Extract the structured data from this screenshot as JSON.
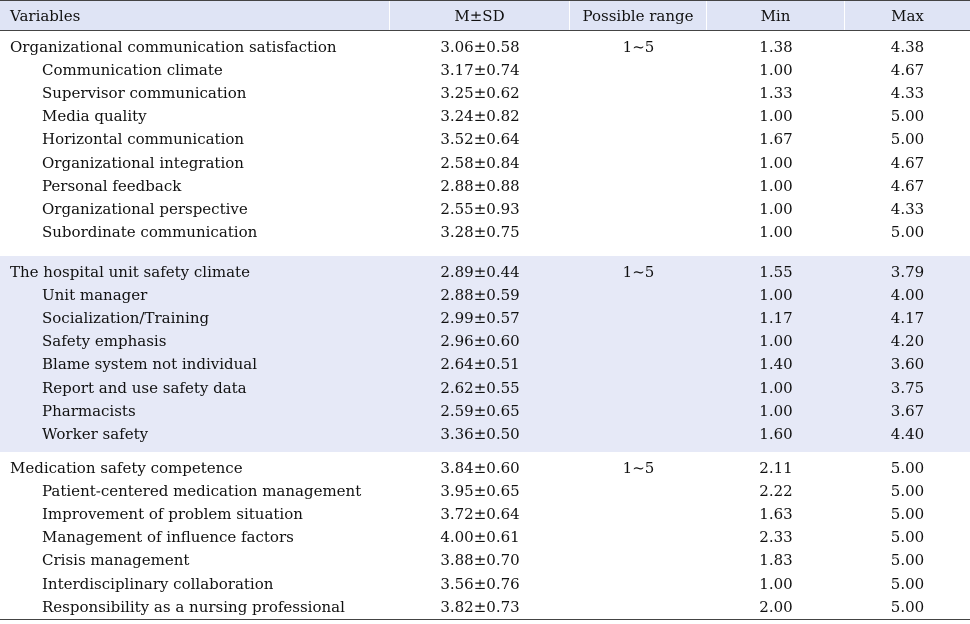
{
  "header": {
    "variables": "Variables",
    "msd": "M±SD",
    "range": "Possible range",
    "min": "Min",
    "max": "Max"
  },
  "groups": [
    {
      "shaded": false,
      "rows": [
        {
          "label": "Organizational communication satisfaction",
          "msd": "3.06±0.58",
          "range": "1~5",
          "min": "1.38",
          "max": "4.38",
          "sub": false
        },
        {
          "label": "Communication climate",
          "msd": "3.17±0.74",
          "range": "",
          "min": "1.00",
          "max": "4.67",
          "sub": true
        },
        {
          "label": "Supervisor communication",
          "msd": "3.25±0.62",
          "range": "",
          "min": "1.33",
          "max": "4.33",
          "sub": true
        },
        {
          "label": "Media quality",
          "msd": "3.24±0.82",
          "range": "",
          "min": "1.00",
          "max": "5.00",
          "sub": true
        },
        {
          "label": "Horizontal communication",
          "msd": "3.52±0.64",
          "range": "",
          "min": "1.67",
          "max": "5.00",
          "sub": true
        },
        {
          "label": "Organizational integration",
          "msd": "2.58±0.84",
          "range": "",
          "min": "1.00",
          "max": "4.67",
          "sub": true
        },
        {
          "label": "Personal feedback",
          "msd": "2.88±0.88",
          "range": "",
          "min": "1.00",
          "max": "4.67",
          "sub": true
        },
        {
          "label": "Organizational perspective",
          "msd": "2.55±0.93",
          "range": "",
          "min": "1.00",
          "max": "4.33",
          "sub": true
        },
        {
          "label": "Subordinate communication",
          "msd": "3.28±0.75",
          "range": "",
          "min": "1.00",
          "max": "5.00",
          "sub": true
        }
      ]
    },
    {
      "shaded": true,
      "rows": [
        {
          "label": "The hospital unit safety climate",
          "msd": "2.89±0.44",
          "range": "1~5",
          "min": "1.55",
          "max": "3.79",
          "sub": false
        },
        {
          "label": "Unit manager",
          "msd": "2.88±0.59",
          "range": "",
          "min": "1.00",
          "max": "4.00",
          "sub": true
        },
        {
          "label": "Socialization/Training",
          "msd": "2.99±0.57",
          "range": "",
          "min": "1.17",
          "max": "4.17",
          "sub": true
        },
        {
          "label": "Safety emphasis",
          "msd": "2.96±0.60",
          "range": "",
          "min": "1.00",
          "max": "4.20",
          "sub": true
        },
        {
          "label": "Blame system not individual",
          "msd": "2.64±0.51",
          "range": "",
          "min": "1.40",
          "max": "3.60",
          "sub": true
        },
        {
          "label": "Report and use safety data",
          "msd": "2.62±0.55",
          "range": "",
          "min": "1.00",
          "max": "3.75",
          "sub": true
        },
        {
          "label": "Pharmacists",
          "msd": "2.59±0.65",
          "range": "",
          "min": "1.00",
          "max": "3.67",
          "sub": true
        },
        {
          "label": "Worker safety",
          "msd": "3.36±0.50",
          "range": "",
          "min": "1.60",
          "max": "4.40",
          "sub": true
        }
      ]
    },
    {
      "shaded": false,
      "rows": [
        {
          "label": "Medication safety competence",
          "msd": "3.84±0.60",
          "range": "1~5",
          "min": "2.11",
          "max": "5.00",
          "sub": false
        },
        {
          "label": "Patient-centered medication management",
          "msd": "3.95±0.65",
          "range": "",
          "min": "2.22",
          "max": "5.00",
          "sub": true
        },
        {
          "label": "Improvement of problem situation",
          "msd": "3.72±0.64",
          "range": "",
          "min": "1.63",
          "max": "5.00",
          "sub": true
        },
        {
          "label": "Management of influence factors",
          "msd": "4.00±0.61",
          "range": "",
          "min": "2.33",
          "max": "5.00",
          "sub": true
        },
        {
          "label": "Crisis management",
          "msd": "3.88±0.70",
          "range": "",
          "min": "1.83",
          "max": "5.00",
          "sub": true
        },
        {
          "label": "Interdisciplinary collaboration",
          "msd": "3.56±0.76",
          "range": "",
          "min": "1.00",
          "max": "5.00",
          "sub": true
        },
        {
          "label": "Responsibility as a nursing professional",
          "msd": "3.82±0.73",
          "range": "",
          "min": "2.00",
          "max": "5.00",
          "sub": true
        }
      ]
    }
  ]
}
